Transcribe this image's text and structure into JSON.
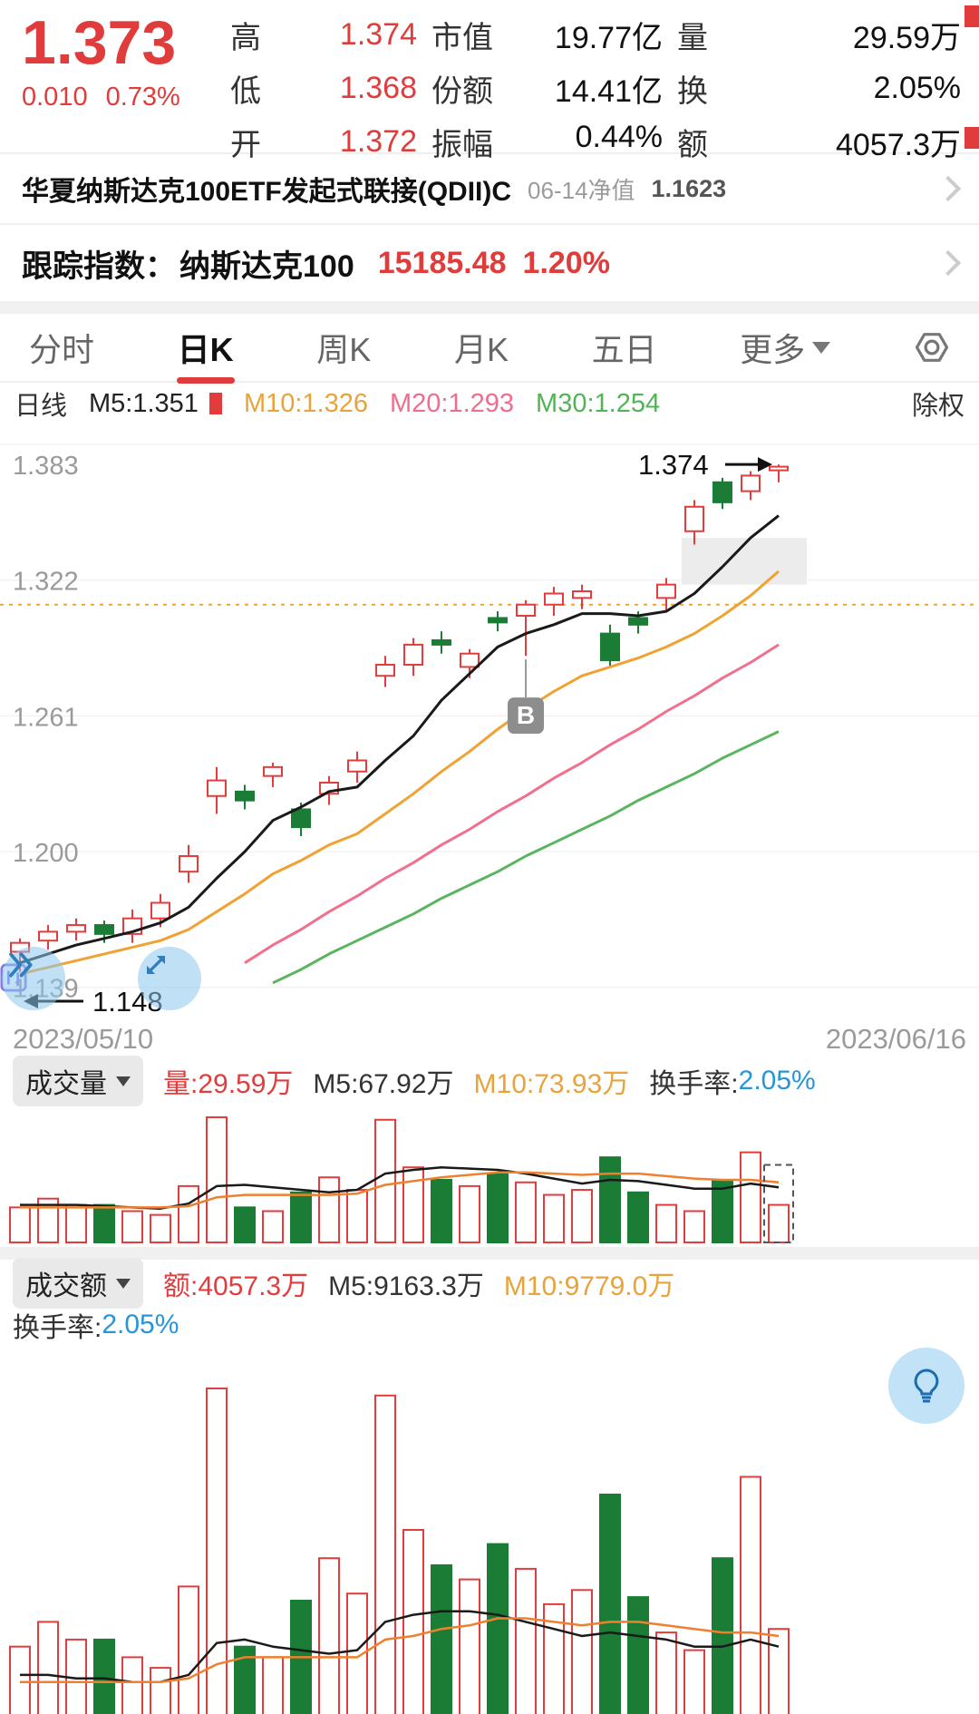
{
  "header": {
    "price": "1.373",
    "change": "0.010",
    "change_pct": "0.73%",
    "rows": [
      {
        "k1": "高",
        "v1": "1.374",
        "k2": "市值",
        "v2": "19.77亿",
        "k3": "量",
        "v3": "29.59万"
      },
      {
        "k1": "低",
        "v1": "1.368",
        "k2": "份额",
        "v2": "14.41亿",
        "k3": "换",
        "v3": "2.05%"
      },
      {
        "k1": "开",
        "v1": "1.372",
        "k2": "振幅",
        "v2": "0.44%",
        "k3": "额",
        "v3": "4057.3万"
      }
    ]
  },
  "fund_row": {
    "name": "华夏纳斯达克100ETF发起式联接(QDII)C",
    "date_label": "06-14净值",
    "nav": "1.1623"
  },
  "index_row": {
    "label": "跟踪指数：",
    "name": "纳斯达克100",
    "value": "15185.48",
    "pct": "1.20%"
  },
  "tabs": [
    {
      "label": "分时"
    },
    {
      "label": "日K",
      "active": true
    },
    {
      "label": "周K"
    },
    {
      "label": "月K"
    },
    {
      "label": "五日"
    },
    {
      "label": "更多"
    }
  ],
  "kline_header": {
    "period": "日线",
    "m5": "M5:1.351",
    "m10": "M10:1.326",
    "m20": "M20:1.293",
    "m30": "M30:1.254",
    "right": "除权"
  },
  "vol_pane": {
    "title": "成交量",
    "vol": "量:29.59万",
    "ma5": "M5:67.92万",
    "ma10": "M10:73.93万",
    "turn_label": "换手率:",
    "turn_value": "2.05%"
  },
  "amt_pane": {
    "title": "成交额",
    "amt": "额:4057.3万",
    "ma5": "M5:9163.3万",
    "ma10": "M10:9779.0万",
    "turn_label": "换手率:",
    "turn_value": "2.05%"
  },
  "colors": {
    "up": "#e23c3c",
    "down": "#1a7c35",
    "ma5": "#1a1a1a",
    "ma10": "#f0a232",
    "ma20": "#f0708e",
    "ma30": "#5ab55e",
    "accent_blue": "#2795d9",
    "grid": "#ededed",
    "axis_label": "#9a9a9a"
  },
  "icons": {
    "settings": "hex-nut-gear",
    "chevron_right": "›",
    "caret_down": "▼",
    "fast_forward": "»",
    "expand": "diagonal-double-arrow",
    "buy_marker": "B",
    "bulb": "light-bulb",
    "low_arrow": "←",
    "high_arrow": "→"
  },
  "chart_data": {
    "type": "candlestick",
    "title": "日线",
    "x_range": [
      "2023/05/10",
      "2023/06/16"
    ],
    "y_min": 1.123,
    "y_max": 1.392,
    "gridlines": [
      1.383,
      1.322,
      1.261,
      1.2,
      1.139
    ],
    "dotted_line": 1.311,
    "gap_zone": [
      1.341,
      1.32
    ],
    "high_annotation": "1.374",
    "low_annotation": "1.148",
    "buy_index": 18,
    "buy_label": "B",
    "candles": [
      {
        "o": 1.155,
        "h": 1.161,
        "l": 1.146,
        "c": 1.159,
        "u": 1
      },
      {
        "o": 1.16,
        "h": 1.167,
        "l": 1.156,
        "c": 1.164,
        "u": 1
      },
      {
        "o": 1.164,
        "h": 1.17,
        "l": 1.16,
        "c": 1.167,
        "u": 1
      },
      {
        "o": 1.167,
        "h": 1.169,
        "l": 1.159,
        "c": 1.163,
        "u": 0
      },
      {
        "o": 1.163,
        "h": 1.174,
        "l": 1.159,
        "c": 1.17,
        "u": 1
      },
      {
        "o": 1.17,
        "h": 1.181,
        "l": 1.166,
        "c": 1.177,
        "u": 1
      },
      {
        "o": 1.191,
        "h": 1.203,
        "l": 1.186,
        "c": 1.198,
        "u": 1
      },
      {
        "o": 1.225,
        "h": 1.238,
        "l": 1.217,
        "c": 1.232,
        "u": 1
      },
      {
        "o": 1.227,
        "h": 1.23,
        "l": 1.219,
        "c": 1.223,
        "u": 0
      },
      {
        "o": 1.234,
        "h": 1.24,
        "l": 1.229,
        "c": 1.238,
        "u": 1
      },
      {
        "o": 1.219,
        "h": 1.222,
        "l": 1.207,
        "c": 1.211,
        "u": 0
      },
      {
        "o": 1.226,
        "h": 1.234,
        "l": 1.221,
        "c": 1.231,
        "u": 1
      },
      {
        "o": 1.236,
        "h": 1.245,
        "l": 1.231,
        "c": 1.241,
        "u": 1
      },
      {
        "o": 1.279,
        "h": 1.288,
        "l": 1.274,
        "c": 1.284,
        "u": 1
      },
      {
        "o": 1.284,
        "h": 1.296,
        "l": 1.279,
        "c": 1.293,
        "u": 1
      },
      {
        "o": 1.295,
        "h": 1.299,
        "l": 1.289,
        "c": 1.293,
        "u": 0
      },
      {
        "o": 1.283,
        "h": 1.291,
        "l": 1.278,
        "c": 1.289,
        "u": 1
      },
      {
        "o": 1.305,
        "h": 1.308,
        "l": 1.299,
        "c": 1.303,
        "u": 0
      },
      {
        "o": 1.306,
        "h": 1.313,
        "l": 1.288,
        "c": 1.311,
        "u": 1
      },
      {
        "o": 1.311,
        "h": 1.319,
        "l": 1.306,
        "c": 1.316,
        "u": 1
      },
      {
        "o": 1.314,
        "h": 1.32,
        "l": 1.309,
        "c": 1.317,
        "u": 1
      },
      {
        "o": 1.298,
        "h": 1.302,
        "l": 1.283,
        "c": 1.286,
        "u": 0
      },
      {
        "o": 1.305,
        "h": 1.308,
        "l": 1.298,
        "c": 1.302,
        "u": 0
      },
      {
        "o": 1.314,
        "h": 1.323,
        "l": 1.308,
        "c": 1.32,
        "u": 1
      },
      {
        "o": 1.344,
        "h": 1.358,
        "l": 1.338,
        "c": 1.355,
        "u": 1
      },
      {
        "o": 1.366,
        "h": 1.368,
        "l": 1.354,
        "c": 1.357,
        "u": 0
      },
      {
        "o": 1.362,
        "h": 1.371,
        "l": 1.358,
        "c": 1.369,
        "u": 1
      },
      {
        "o": 1.372,
        "h": 1.374,
        "l": 1.366,
        "c": 1.373,
        "u": 1
      }
    ],
    "ma5": [
      1.15,
      1.154,
      1.158,
      1.161,
      1.164,
      1.168,
      1.175,
      1.188,
      1.2,
      1.214,
      1.22,
      1.227,
      1.229,
      1.241,
      1.252,
      1.268,
      1.28,
      1.292,
      1.298,
      1.302,
      1.307,
      1.307,
      1.306,
      1.308,
      1.316,
      1.328,
      1.341,
      1.351
    ],
    "ma10": [
      1.145,
      1.148,
      1.151,
      1.154,
      1.157,
      1.16,
      1.165,
      1.173,
      1.181,
      1.19,
      1.196,
      1.203,
      1.208,
      1.217,
      1.226,
      1.236,
      1.245,
      1.255,
      1.264,
      1.272,
      1.279,
      1.283,
      1.287,
      1.292,
      1.298,
      1.306,
      1.315,
      1.326
    ],
    "ma20": [
      null,
      null,
      null,
      null,
      null,
      null,
      null,
      null,
      1.15,
      1.158,
      1.165,
      1.173,
      1.18,
      1.188,
      1.195,
      1.203,
      1.21,
      1.218,
      1.225,
      1.233,
      1.24,
      1.248,
      1.255,
      1.263,
      1.27,
      1.278,
      1.285,
      1.293
    ],
    "ma30": [
      null,
      null,
      null,
      null,
      null,
      null,
      null,
      null,
      null,
      1.141,
      1.147,
      1.154,
      1.16,
      1.166,
      1.172,
      1.179,
      1.185,
      1.191,
      1.198,
      1.204,
      1.21,
      1.216,
      1.223,
      1.229,
      1.235,
      1.242,
      1.248,
      1.254
    ],
    "volume": {
      "values": [
        0.28,
        0.35,
        0.3,
        0.3,
        0.25,
        0.22,
        0.45,
        1.0,
        0.28,
        0.25,
        0.4,
        0.52,
        0.42,
        0.98,
        0.6,
        0.5,
        0.45,
        0.55,
        0.48,
        0.38,
        0.42,
        0.68,
        0.4,
        0.3,
        0.25,
        0.5,
        0.72,
        0.3
      ],
      "ma5": [
        0.3,
        0.3,
        0.3,
        0.29,
        0.28,
        0.27,
        0.31,
        0.45,
        0.46,
        0.44,
        0.42,
        0.4,
        0.42,
        0.55,
        0.58,
        0.6,
        0.59,
        0.58,
        0.55,
        0.51,
        0.47,
        0.5,
        0.49,
        0.46,
        0.43,
        0.43,
        0.47,
        0.44
      ],
      "ma10": [
        0.28,
        0.28,
        0.28,
        0.28,
        0.28,
        0.28,
        0.29,
        0.36,
        0.38,
        0.38,
        0.38,
        0.38,
        0.39,
        0.46,
        0.49,
        0.52,
        0.54,
        0.56,
        0.56,
        0.55,
        0.54,
        0.55,
        0.55,
        0.53,
        0.51,
        0.5,
        0.5,
        0.48
      ]
    },
    "amount": {
      "values": [
        0.27,
        0.34,
        0.29,
        0.29,
        0.24,
        0.21,
        0.44,
        1.0,
        0.27,
        0.24,
        0.4,
        0.52,
        0.42,
        0.98,
        0.6,
        0.5,
        0.46,
        0.56,
        0.49,
        0.39,
        0.43,
        0.7,
        0.41,
        0.31,
        0.26,
        0.52,
        0.75,
        0.32
      ],
      "ma5": [
        0.19,
        0.19,
        0.18,
        0.18,
        0.17,
        0.17,
        0.19,
        0.28,
        0.29,
        0.27,
        0.26,
        0.25,
        0.26,
        0.34,
        0.36,
        0.37,
        0.37,
        0.36,
        0.34,
        0.32,
        0.3,
        0.31,
        0.3,
        0.29,
        0.27,
        0.27,
        0.29,
        0.27
      ],
      "ma10": [
        0.17,
        0.17,
        0.17,
        0.17,
        0.17,
        0.17,
        0.18,
        0.22,
        0.24,
        0.24,
        0.24,
        0.24,
        0.24,
        0.29,
        0.3,
        0.32,
        0.33,
        0.35,
        0.35,
        0.34,
        0.33,
        0.34,
        0.34,
        0.33,
        0.32,
        0.31,
        0.31,
        0.3
      ]
    }
  }
}
